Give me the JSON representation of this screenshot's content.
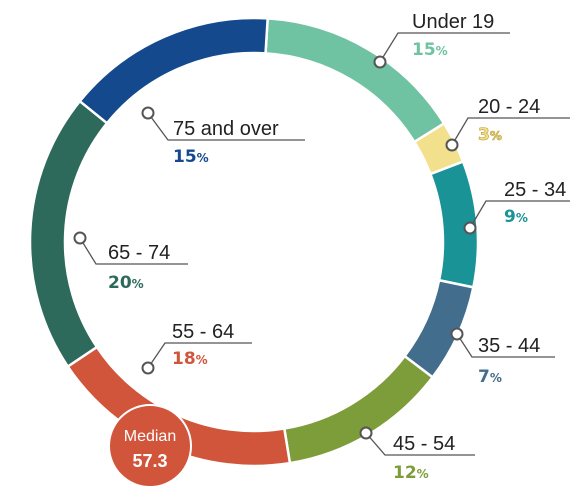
{
  "chart_data": {
    "type": "pie",
    "variant": "donut",
    "categories": [
      "Under 19",
      "20 - 24",
      "25 - 34",
      "35 - 44",
      "45 - 54",
      "55 - 64",
      "65 - 74",
      "75 and over"
    ],
    "values": [
      15,
      3,
      9,
      7,
      12,
      18,
      20,
      15
    ],
    "value_labels": [
      "15%",
      "3%",
      "9%",
      "7%",
      "12%",
      "18%",
      "20%",
      "15%"
    ],
    "colors": [
      "#6fc3a2",
      "#f3e08c",
      "#1a9396",
      "#436d8c",
      "#7d9c3a",
      "#d1553b",
      "#2e6a5c",
      "#14498d"
    ],
    "median": {
      "label": "Median",
      "value": "57.3",
      "color": "#d1553b"
    }
  }
}
